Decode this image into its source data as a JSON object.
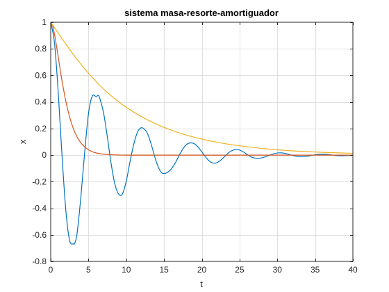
{
  "chart_data": {
    "type": "line",
    "title": "sistema masa-resorte-amortiguador",
    "xlabel": "t",
    "ylabel": "x",
    "xlim": [
      0,
      40
    ],
    "ylim": [
      -0.8,
      1
    ],
    "xticks": [
      0,
      5,
      10,
      15,
      20,
      25,
      30,
      35,
      40
    ],
    "yticks": [
      -0.8,
      -0.6,
      -0.4,
      -0.2,
      0,
      0.2,
      0.4,
      0.6,
      0.8,
      1
    ],
    "xtick_labels": [
      "0",
      "5",
      "10",
      "15",
      "20",
      "25",
      "30",
      "35",
      "40"
    ],
    "ytick_labels": [
      "-0.8",
      "-0.6",
      "-0.4",
      "-0.2",
      "0",
      "0.2",
      "0.4",
      "0.6",
      "0.8",
      "1"
    ],
    "grid": true,
    "series": [
      {
        "color": "#0072bd",
        "x": [
          0,
          0.5,
          1,
          1.5,
          2,
          2.5,
          3,
          3.2,
          3.5,
          4,
          4.5,
          5,
          5.5,
          6,
          6.3,
          6.5,
          7,
          7.5,
          8,
          8.5,
          9,
          9.5,
          10,
          10.5,
          11,
          11.5,
          12,
          12.6,
          13,
          13.5,
          14,
          14.5,
          15,
          15.8,
          16.5,
          17,
          17.5,
          18,
          18.5,
          19,
          19.5,
          20,
          20.5,
          21,
          21.5,
          22,
          22.5,
          23,
          23.5,
          24,
          24.5,
          25,
          25.5,
          26,
          26.5,
          27,
          27.5,
          28,
          28.5,
          29,
          29.5,
          30,
          30.5,
          31,
          31.5,
          32,
          32.5,
          33,
          33.5,
          34,
          34.5,
          35,
          35.5,
          36,
          36.5,
          37,
          37.5,
          38,
          38.5,
          39,
          39.5,
          40
        ],
        "y": [
          1,
          0.846,
          0.466,
          -0.007,
          -0.415,
          -0.642,
          -0.668,
          -0.66,
          -0.585,
          -0.309,
          0.024,
          0.313,
          0.444,
          0.441,
          0.45,
          0.426,
          0.317,
          0.136,
          -0.065,
          -0.219,
          -0.294,
          -0.292,
          -0.196,
          -0.05,
          0.084,
          0.174,
          0.206,
          0.183,
          0.135,
          0.043,
          -0.054,
          -0.119,
          -0.139,
          -0.115,
          -0.058,
          -0.003,
          0.047,
          0.081,
          0.092,
          0.086,
          0.061,
          0.025,
          -0.014,
          -0.045,
          -0.06,
          -0.057,
          -0.038,
          -0.012,
          0.015,
          0.034,
          0.042,
          0.038,
          0.024,
          0.005,
          -0.012,
          -0.022,
          -0.024,
          -0.02,
          -0.011,
          0.0,
          0.01,
          0.016,
          0.017,
          0.013,
          0.006,
          -0.002,
          -0.008,
          -0.011,
          -0.011,
          -0.008,
          -0.002,
          0.003,
          0.006,
          0.007,
          0.006,
          0.003,
          -0.001,
          -0.004,
          -0.005,
          -0.004,
          -0.002,
          0.0
        ]
      },
      {
        "color": "#d95319",
        "x": [
          0,
          0.25,
          0.5,
          0.75,
          1,
          1.25,
          1.5,
          2,
          2.5,
          3,
          3.5,
          4,
          4.5,
          5,
          5.5,
          6,
          6.5,
          7,
          8,
          9,
          10,
          12,
          15,
          20,
          25,
          30,
          35,
          40
        ],
        "y": [
          1,
          0.974,
          0.91,
          0.827,
          0.736,
          0.645,
          0.558,
          0.406,
          0.287,
          0.199,
          0.136,
          0.092,
          0.061,
          0.04,
          0.026,
          0.017,
          0.011,
          0.007,
          0.003,
          0.001,
          0.0,
          0.0,
          0.0,
          0.0,
          0.0,
          0.0,
          0.0,
          0.0
        ]
      },
      {
        "color": "#edb120",
        "x": [
          0,
          1,
          2,
          3,
          4,
          5,
          6,
          7,
          8,
          9,
          10,
          12,
          14,
          16,
          18,
          20,
          22,
          24,
          26,
          28,
          30,
          32,
          34,
          36,
          38,
          40
        ],
        "y": [
          1,
          0.918,
          0.836,
          0.757,
          0.684,
          0.616,
          0.554,
          0.497,
          0.447,
          0.401,
          0.36,
          0.29,
          0.233,
          0.187,
          0.15,
          0.121,
          0.097,
          0.078,
          0.063,
          0.05,
          0.04,
          0.032,
          0.026,
          0.021,
          0.017,
          0.014
        ]
      }
    ]
  }
}
